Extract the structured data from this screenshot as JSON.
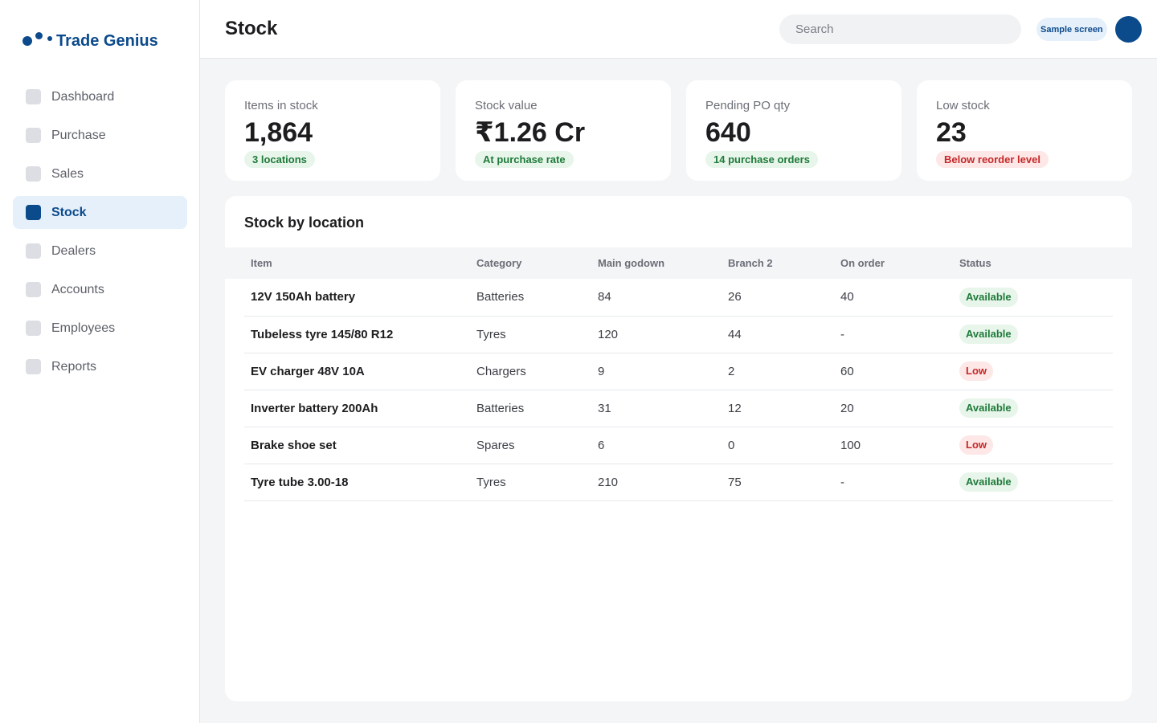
{
  "app": {
    "brand_name": "Trade Genius"
  },
  "sidebar": {
    "items": [
      {
        "label": "Dashboard",
        "active": false
      },
      {
        "label": "Purchase",
        "active": false
      },
      {
        "label": "Sales",
        "active": false
      },
      {
        "label": "Stock",
        "active": true
      },
      {
        "label": "Dealers",
        "active": false
      },
      {
        "label": "Accounts",
        "active": false
      },
      {
        "label": "Employees",
        "active": false
      },
      {
        "label": "Reports",
        "active": false
      }
    ]
  },
  "header": {
    "title": "Stock",
    "search_placeholder": "Search",
    "badge": "Sample screen"
  },
  "cards": [
    {
      "label": "Items in stock",
      "value": "1,864",
      "note": "3 locations",
      "tone": "green"
    },
    {
      "label": "Stock value",
      "value": "₹1.26 Cr",
      "note": "At purchase rate",
      "tone": "green"
    },
    {
      "label": "Pending PO qty",
      "value": "640",
      "note": "14 purchase orders",
      "tone": "green"
    },
    {
      "label": "Low stock",
      "value": "23",
      "note": "Below reorder level",
      "tone": "red"
    }
  ],
  "stock_table": {
    "title": "Stock by location",
    "columns": [
      "Item",
      "Category",
      "Main godown",
      "Branch 2",
      "On order",
      "Status"
    ],
    "rows": [
      {
        "item": "12V 150Ah battery",
        "category": "Batteries",
        "main": "84",
        "branch2": "26",
        "on_order": "40",
        "status": "Available",
        "tone": "ok"
      },
      {
        "item": "Tubeless tyre 145/80 R12",
        "category": "Tyres",
        "main": "120",
        "branch2": "44",
        "on_order": "-",
        "status": "Available",
        "tone": "ok"
      },
      {
        "item": "EV charger 48V 10A",
        "category": "Chargers",
        "main": "9",
        "branch2": "2",
        "on_order": "60",
        "status": "Low",
        "tone": "low"
      },
      {
        "item": "Inverter battery 200Ah",
        "category": "Batteries",
        "main": "31",
        "branch2": "12",
        "on_order": "20",
        "status": "Available",
        "tone": "ok"
      },
      {
        "item": "Brake shoe set",
        "category": "Spares",
        "main": "6",
        "branch2": "0",
        "on_order": "100",
        "status": "Low",
        "tone": "low"
      },
      {
        "item": "Tyre tube 3.00-18",
        "category": "Tyres",
        "main": "210",
        "branch2": "75",
        "on_order": "-",
        "status": "Available",
        "tone": "ok"
      }
    ]
  }
}
